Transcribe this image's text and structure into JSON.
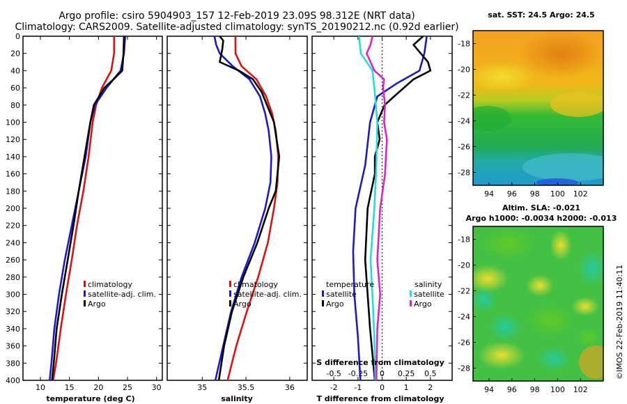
{
  "title_line1": "Argo profile: csiro 5904903_157 12-Feb-2019 23.09S 98.312E (NRT data)",
  "title_line2": "Climatology: CARS2009. Satellite-adjusted climatology: synTS_20190212.nc (0.92d earlier)",
  "colors": {
    "red": "#dd1111",
    "blue": "#1a1acc",
    "black": "#000000",
    "cyan": "#22dddd",
    "magenta": "#dd22cc"
  },
  "chart_data": [
    {
      "type": "line",
      "id": "temperature",
      "xlabel": "temperature (deg C)",
      "ylabel": "depth",
      "xlim": [
        7,
        31
      ],
      "ylim": [
        400,
        0
      ],
      "xticks": [
        10,
        15,
        20,
        25,
        30
      ],
      "xtick_labels": [
        "10",
        "15",
        "20",
        "25",
        "30"
      ],
      "yticks": [
        0,
        20,
        40,
        60,
        80,
        100,
        120,
        140,
        160,
        180,
        200,
        220,
        240,
        260,
        280,
        300,
        320,
        340,
        360,
        380,
        400
      ],
      "ytick_labels": [
        "0",
        "20",
        "40",
        "60",
        "80",
        "100",
        "120",
        "140",
        "160",
        "180",
        "200",
        "220",
        "240",
        "260",
        "280",
        "300",
        "320",
        "340",
        "360",
        "380",
        "400"
      ],
      "legend": [
        "climatology",
        "satellite-adj. clim.",
        "Argo"
      ],
      "legend_position": "lower-right",
      "series": [
        {
          "name": "climatology",
          "color": "red",
          "depth": [
            0,
            20,
            40,
            60,
            80,
            100,
            140,
            180,
            220,
            260,
            300,
            340,
            380,
            400
          ],
          "values": [
            22.7,
            22.7,
            22.2,
            20.6,
            19.6,
            19.0,
            18.3,
            17.4,
            16.3,
            15.4,
            14.4,
            13.5,
            12.7,
            12.2
          ]
        },
        {
          "name": "satellite-adj. clim.",
          "color": "blue",
          "depth": [
            0,
            20,
            40,
            60,
            80,
            100,
            140,
            180,
            220,
            260,
            300,
            340,
            380,
            400
          ],
          "values": [
            24.6,
            24.4,
            23.8,
            21.4,
            19.4,
            18.6,
            17.8,
            16.6,
            15.4,
            14.2,
            13.2,
            12.4,
            11.9,
            11.6
          ]
        },
        {
          "name": "Argo",
          "color": "black",
          "depth": [
            0,
            20,
            40,
            50,
            60,
            80,
            100,
            140,
            180,
            220,
            260,
            300,
            340,
            380,
            400
          ],
          "values": [
            24.4,
            24.3,
            24.1,
            22.6,
            21.0,
            19.2,
            18.6,
            17.6,
            16.6,
            15.7,
            14.7,
            13.7,
            12.8,
            12.3,
            12.0
          ]
        }
      ]
    },
    {
      "type": "line",
      "id": "salinity",
      "xlabel": "salinity",
      "ylabel": "depth",
      "xlim": [
        34.6,
        36.2
      ],
      "ylim": [
        400,
        0
      ],
      "xticks": [
        35,
        35.5,
        36
      ],
      "xtick_labels": [
        "35",
        "35.5",
        "36"
      ],
      "legend": [
        "climatology",
        "satellite-adj. clim.",
        "Argo"
      ],
      "legend_position": "lower-right",
      "series": [
        {
          "name": "climatology",
          "color": "red",
          "depth": [
            0,
            20,
            35,
            50,
            70,
            90,
            110,
            140,
            170,
            200,
            240,
            280,
            320,
            360,
            400
          ],
          "values": [
            35.38,
            35.38,
            35.45,
            35.62,
            35.73,
            35.8,
            35.84,
            35.87,
            35.86,
            35.82,
            35.75,
            35.64,
            35.51,
            35.39,
            35.29
          ]
        },
        {
          "name": "satellite-adj. clim.",
          "color": "blue",
          "depth": [
            0,
            10,
            20,
            35,
            50,
            70,
            90,
            110,
            140,
            170,
            200,
            240,
            280,
            320,
            360,
            400
          ],
          "values": [
            35.14,
            35.16,
            35.2,
            35.35,
            35.54,
            35.66,
            35.72,
            35.76,
            35.79,
            35.78,
            35.72,
            35.6,
            35.45,
            35.33,
            35.24,
            35.15
          ]
        },
        {
          "name": "Argo",
          "color": "black",
          "depth": [
            0,
            5,
            15,
            30,
            40,
            50,
            65,
            80,
            100,
            120,
            140,
            160,
            180,
            200,
            240,
            280,
            320,
            360,
            400
          ],
          "values": [
            35.2,
            35.24,
            35.23,
            35.2,
            35.42,
            35.58,
            35.68,
            35.74,
            35.82,
            35.85,
            35.88,
            35.86,
            35.84,
            35.76,
            35.63,
            35.47,
            35.34,
            35.25,
            35.19
          ]
        }
      ]
    },
    {
      "type": "line",
      "id": "difference",
      "xlabel": "T difference from climatology",
      "xlabel_top": "S difference from climatology",
      "ylabel": "depth",
      "xlim": [
        -2.9,
        2.9
      ],
      "ylim": [
        400,
        0
      ],
      "xticks": [
        -2,
        -1,
        0,
        1,
        2
      ],
      "xtick_labels": [
        "-2",
        "-1",
        "0",
        "1",
        "2"
      ],
      "s_ticks": [
        -0.5,
        -0.25,
        0,
        0.25,
        0.5
      ],
      "s_tick_labels": [
        "-0.5",
        "-0.25",
        "0",
        "0.25",
        "0.5"
      ],
      "s_scale_per_T": 0.25,
      "legend_temperature_title": "temperature",
      "legend_salinity_title": "salinity",
      "legend_temperature": [
        "satellite",
        "Argo"
      ],
      "legend_salinity": [
        "satellite",
        "Argo"
      ],
      "series": [
        {
          "name": "T satellite",
          "color": "blue",
          "depth": [
            0,
            20,
            40,
            55,
            70,
            100,
            150,
            200,
            250,
            300,
            350,
            400
          ],
          "values": [
            1.85,
            1.75,
            1.55,
            0.6,
            -0.2,
            -0.5,
            -0.7,
            -1.1,
            -1.2,
            -1.15,
            -1.0,
            -0.9
          ]
        },
        {
          "name": "T Argo",
          "color": "black",
          "depth": [
            0,
            10,
            20,
            30,
            40,
            50,
            60,
            70,
            80,
            100,
            120,
            140,
            160,
            200,
            260,
            300,
            340,
            400
          ],
          "values": [
            1.7,
            1.3,
            1.6,
            1.9,
            2.0,
            1.3,
            0.9,
            0.5,
            0.1,
            -0.2,
            -0.1,
            -0.3,
            -0.3,
            -0.6,
            -0.7,
            -0.6,
            -0.5,
            -0.3
          ]
        },
        {
          "name": "S satellite",
          "color": "cyan",
          "depth": [
            0,
            20,
            40,
            60,
            100,
            150,
            200,
            260,
            300,
            350,
            400
          ],
          "values": [
            -0.24,
            -0.22,
            -0.1,
            -0.08,
            -0.05,
            -0.06,
            -0.08,
            -0.12,
            -0.1,
            -0.08,
            -0.07
          ]
        },
        {
          "name": "S Argo",
          "color": "magenta",
          "depth": [
            0,
            10,
            20,
            40,
            50,
            60,
            80,
            100,
            120,
            140,
            160,
            200,
            260,
            300,
            340,
            400
          ],
          "values": [
            -0.1,
            -0.12,
            -0.16,
            -0.08,
            0.02,
            0.01,
            0.03,
            0.02,
            0.05,
            0.04,
            0.03,
            -0.02,
            -0.05,
            -0.02,
            -0.05,
            -0.06
          ]
        }
      ]
    },
    {
      "type": "heatmap",
      "id": "sst_map",
      "title": "sat. SST: 24.5 Argo: 24.5",
      "xticks": [
        94,
        96,
        98,
        100,
        102
      ],
      "yticks": [
        -18,
        -20,
        -22,
        -24,
        -26,
        -28
      ],
      "xlim": [
        92.6,
        104.0
      ],
      "ylim": [
        -29.0,
        -17.0
      ]
    },
    {
      "type": "heatmap",
      "id": "sla_map",
      "title_line1": "Altim. SLA: -0.021",
      "title_line2": "Argo h1000: -0.0034 h2000: -0.013",
      "xticks": [
        94,
        96,
        98,
        100,
        102
      ],
      "yticks": [
        -18,
        -20,
        -22,
        -24,
        -26,
        -28
      ],
      "xlim": [
        92.6,
        104.0
      ],
      "ylim": [
        -29.0,
        -17.0
      ]
    }
  ],
  "credit": "©IMOS 22-Feb-2019 11:40:11"
}
